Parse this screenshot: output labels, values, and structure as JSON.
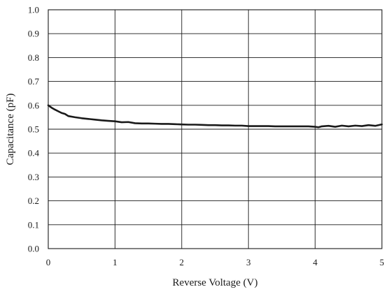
{
  "chart_data": {
    "type": "line",
    "xlabel": "Reverse Voltage (V)",
    "ylabel": "Capacitance (pF)",
    "xlim": [
      0,
      5
    ],
    "ylim": [
      0,
      1.0
    ],
    "xticks": [
      "0",
      "1",
      "2",
      "3",
      "4",
      "5"
    ],
    "yticks": [
      "0.0",
      "0.1",
      "0.2",
      "0.3",
      "0.4",
      "0.5",
      "0.6",
      "0.7",
      "0.8",
      "0.9",
      "1.0"
    ],
    "grid": true,
    "legend": "none",
    "series": [
      {
        "color": "#1a1a1a",
        "x": [
          0,
          0.05,
          0.1,
          0.15,
          0.2,
          0.25,
          0.3,
          0.4,
          0.5,
          0.6,
          0.7,
          0.8,
          0.9,
          1.0,
          1.1,
          1.2,
          1.3,
          1.4,
          1.5,
          1.6,
          1.7,
          1.8,
          1.9,
          2.0,
          2.1,
          2.2,
          2.3,
          2.4,
          2.5,
          2.6,
          2.7,
          2.8,
          2.9,
          3.0,
          3.1,
          3.2,
          3.3,
          3.4,
          3.5,
          3.6,
          3.7,
          3.8,
          3.9,
          4.0,
          4.05,
          4.1,
          4.2,
          4.3,
          4.4,
          4.5,
          4.6,
          4.7,
          4.8,
          4.9,
          5.0
        ],
        "y": [
          0.6,
          0.59,
          0.582,
          0.575,
          0.568,
          0.564,
          0.555,
          0.55,
          0.546,
          0.543,
          0.54,
          0.537,
          0.535,
          0.533,
          0.529,
          0.53,
          0.525,
          0.524,
          0.524,
          0.523,
          0.522,
          0.522,
          0.521,
          0.52,
          0.519,
          0.519,
          0.518,
          0.517,
          0.517,
          0.516,
          0.516,
          0.515,
          0.515,
          0.513,
          0.513,
          0.513,
          0.513,
          0.512,
          0.512,
          0.512,
          0.512,
          0.512,
          0.512,
          0.51,
          0.508,
          0.512,
          0.514,
          0.51,
          0.515,
          0.512,
          0.515,
          0.513,
          0.517,
          0.514,
          0.52
        ]
      }
    ]
  }
}
